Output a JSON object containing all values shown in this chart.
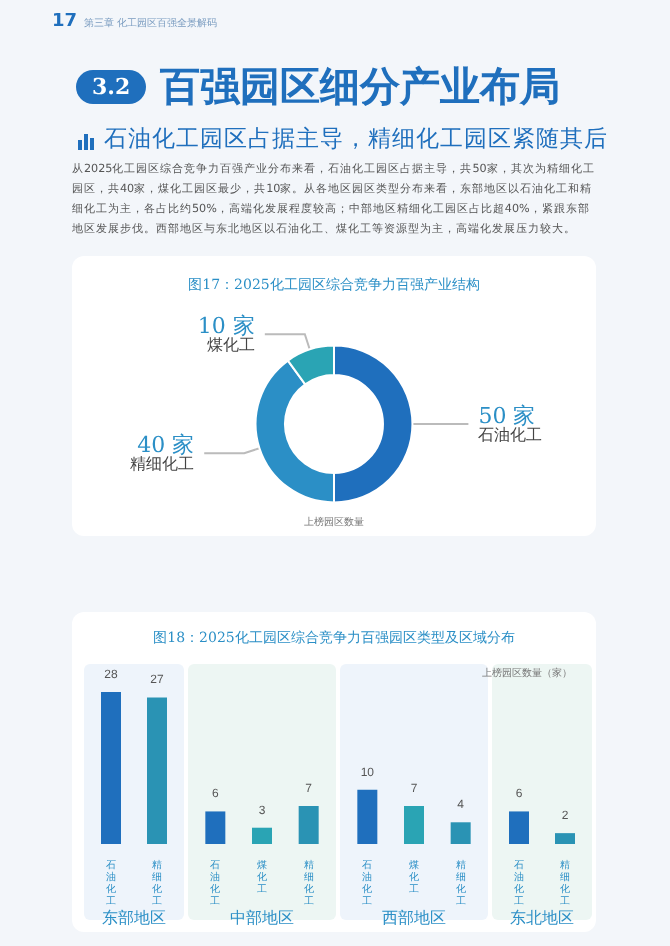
{
  "chart_data": [
    {
      "type": "donut",
      "title": "图17：2025化工园区综合竞争力百强产业结构",
      "xlabel": "上榜园区数量",
      "annotations": [
        "17",
        "第三章 化工园区百强全景解码",
        "3.2",
        "百强园区细分产业布局",
        "石油化工园区占据主导，精细化工园区紧随其后",
        "从2025化工园区综合竞争力百强产业分布来看，石油化工园区占据主导，共50家，其次为精细化工园区，共40家，煤化工园区最少，共10家。从各地区园区类型分布来看，东部地区以石油化工和精细化工为主，各占比约50%，高端化发展程度较高；中部地区精细化工园区占比超40%，紧跟东部地区发展步伐。西部地区与东北地区以石油化工、煤化工等资源型为主，高端化发展压力较大。"
      ],
      "categories": [
        "石油化工",
        "精细化工",
        "煤化工"
      ],
      "values": [
        50,
        40,
        10
      ],
      "value_labels": [
        "50 家",
        "40 家",
        "10 家"
      ],
      "colors": [
        "#1f6fbd",
        "#2b8fc6",
        "#2aa4b4"
      ],
      "legend": false
    },
    {
      "type": "bar",
      "title": "图18：2025化工园区综合竞争力百强园区类型及区域分布",
      "ylabel": "上榜园区数量（家）",
      "xlabel": "东部地区",
      "categories": [
        "石油化工",
        "精细化工"
      ],
      "values": [
        28,
        27
      ],
      "colors": [
        "#1f6fbd",
        "#2a93b4"
      ],
      "data_labels": true,
      "tick_labels": "x"
    },
    {
      "type": "bar",
      "xlabel": "中部地区",
      "categories": [
        "石油化工",
        "煤化工",
        "精细化工"
      ],
      "values": [
        6,
        3,
        7
      ],
      "colors": [
        "#1f6fbd",
        "#2aa4b4",
        "#2a93b4"
      ],
      "data_labels": true,
      "tick_labels": "x"
    },
    {
      "type": "bar",
      "xlabel": "西部地区",
      "categories": [
        "石油化工",
        "煤化工",
        "精细化工"
      ],
      "values": [
        10,
        7,
        4
      ],
      "colors": [
        "#1f6fbd",
        "#2aa4b4",
        "#2a93b4"
      ],
      "data_labels": true,
      "tick_labels": "x"
    },
    {
      "type": "bar",
      "xlabel": "东北地区",
      "categories": [
        "石油化工",
        "精细化工"
      ],
      "values": [
        6,
        2
      ],
      "colors": [
        "#1f6fbd",
        "#2a93b4"
      ],
      "data_labels": true,
      "tick_labels": "x"
    }
  ]
}
